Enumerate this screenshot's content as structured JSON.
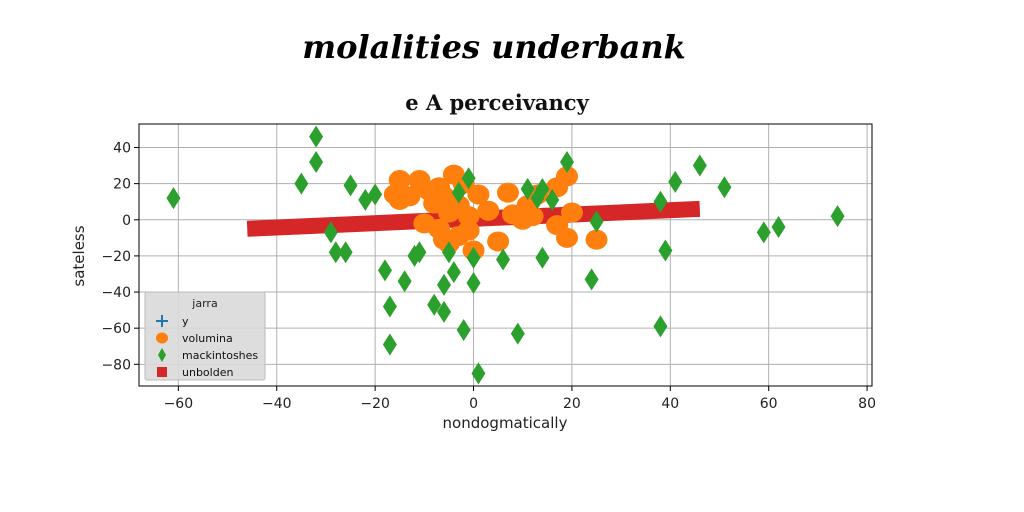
{
  "suptitle": "molalities underbank",
  "chart_data": {
    "type": "scatter",
    "title": "e A perceivancy",
    "xlabel": "nondogmatically",
    "ylabel": "sateless",
    "xlim": [
      -68,
      81
    ],
    "ylim": [
      -92,
      53
    ],
    "xticks": [
      -60,
      -40,
      -20,
      0,
      20,
      40,
      60,
      80
    ],
    "yticks": [
      -80,
      -60,
      -40,
      -20,
      0,
      20,
      40
    ],
    "xtick_labels": [
      "−60",
      "−40",
      "−20",
      "0",
      "20",
      "40",
      "60",
      "80"
    ],
    "ytick_labels": [
      "−80",
      "−60",
      "−40",
      "−20",
      "0",
      "20",
      "40"
    ],
    "grid": true,
    "legend": {
      "title": "jarra",
      "placement": "lower-left"
    },
    "series": [
      {
        "name": "y",
        "marker": "plus",
        "color": "#1f77b4",
        "points": []
      },
      {
        "name": "volumina",
        "marker": "circle",
        "color": "#ff7f0e",
        "points": [
          [
            -15,
            22
          ],
          [
            -11,
            22
          ],
          [
            -13,
            13
          ],
          [
            -15,
            11
          ],
          [
            -9,
            16
          ],
          [
            -6,
            13
          ],
          [
            -4,
            25
          ],
          [
            -2,
            20
          ],
          [
            1,
            14
          ],
          [
            -3,
            8
          ],
          [
            -1,
            2
          ],
          [
            3,
            5
          ],
          [
            -5,
            4
          ],
          [
            -7,
            -5
          ],
          [
            -6,
            -11
          ],
          [
            -3,
            -9
          ],
          [
            -5,
            -13
          ],
          [
            -1,
            -6
          ],
          [
            0,
            -17
          ],
          [
            5,
            -12
          ],
          [
            7,
            15
          ],
          [
            8,
            3
          ],
          [
            11,
            8
          ],
          [
            13,
            14
          ],
          [
            17,
            18
          ],
          [
            19,
            24
          ],
          [
            20,
            4
          ],
          [
            17,
            -3
          ],
          [
            19,
            -10
          ],
          [
            25,
            -11
          ],
          [
            10,
            0
          ],
          [
            12,
            2
          ],
          [
            -10,
            -2
          ],
          [
            -7,
            18
          ],
          [
            -16,
            14
          ],
          [
            -8,
            9
          ]
        ]
      },
      {
        "name": "mackintoshes",
        "marker": "thin_diamond",
        "color": "#2ca02c",
        "points": [
          [
            -61,
            12
          ],
          [
            -35,
            20
          ],
          [
            -32,
            46
          ],
          [
            -32,
            32
          ],
          [
            -29,
            -7
          ],
          [
            -28,
            -18
          ],
          [
            -26,
            -18
          ],
          [
            -25,
            19
          ],
          [
            -22,
            11
          ],
          [
            -20,
            14
          ],
          [
            -18,
            -28
          ],
          [
            -17,
            -69
          ],
          [
            -17,
            -48
          ],
          [
            -14,
            -34
          ],
          [
            -12,
            -20
          ],
          [
            -11,
            -18
          ],
          [
            -8,
            -47
          ],
          [
            -6,
            -36
          ],
          [
            -6,
            -51
          ],
          [
            -5,
            -18
          ],
          [
            -4,
            -29
          ],
          [
            -3,
            15
          ],
          [
            -2,
            -61
          ],
          [
            -1,
            23
          ],
          [
            0,
            -35
          ],
          [
            0,
            -21
          ],
          [
            1,
            -85
          ],
          [
            6,
            -22
          ],
          [
            9,
            -63
          ],
          [
            11,
            17
          ],
          [
            13,
            12
          ],
          [
            14,
            -21
          ],
          [
            14,
            17
          ],
          [
            16,
            11
          ],
          [
            19,
            32
          ],
          [
            24,
            -33
          ],
          [
            25,
            -1
          ],
          [
            38,
            -59
          ],
          [
            38,
            10
          ],
          [
            39,
            -17
          ],
          [
            41,
            21
          ],
          [
            46,
            30
          ],
          [
            51,
            18
          ],
          [
            59,
            -7
          ],
          [
            62,
            -4
          ],
          [
            74,
            2
          ]
        ]
      },
      {
        "name": "unbolden",
        "marker": "square",
        "color": "#d62728",
        "line": {
          "x": [
            -46,
            46
          ],
          "y": [
            -5,
            6
          ]
        }
      }
    ]
  }
}
